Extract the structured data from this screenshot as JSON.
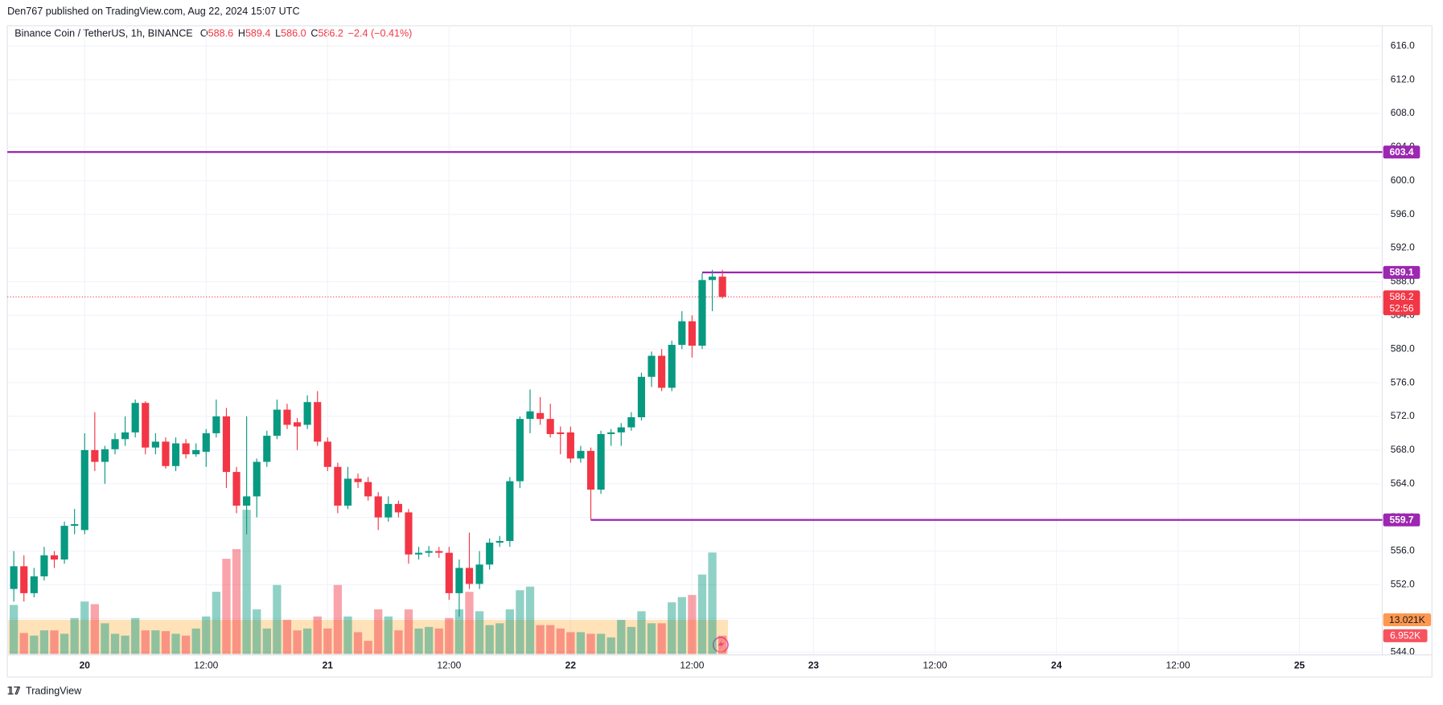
{
  "header": {
    "published": "Den767 published on TradingView.com, Aug 22, 2024 15:07 UTC",
    "brand": "TradingView"
  },
  "chart_data": {
    "type": "candlestick",
    "title": "Binance Coin / TetherUS, 1h, BINANCE",
    "legend": {
      "o_label": "O",
      "o": "588.6",
      "h_label": "H",
      "h": "589.4",
      "l_label": "L",
      "l": "586.0",
      "c_label": "C",
      "c": "586.2",
      "change": "−2.4 (−0.41%)"
    },
    "up_color": "#089981",
    "down_color": "#f23645",
    "open": [
      551.5,
      554.2,
      551,
      553,
      555.5,
      555,
      559,
      558.5,
      568,
      566.6,
      568.1,
      569.3,
      570.1,
      573.6,
      568.3,
      569,
      566.1,
      568.8,
      567.5,
      567.8,
      570,
      572,
      565.4,
      561.4,
      562.5,
      566.6,
      569.7,
      572.8,
      571.3,
      571,
      573.7,
      569,
      566,
      561.4,
      564.6,
      564.2,
      562.5,
      560,
      561.6,
      560.6,
      555.6,
      555.8,
      556,
      555.8,
      551,
      554,
      552.1,
      554.4,
      557,
      557.2,
      564.3,
      571.7,
      572.4,
      571.7,
      570.1,
      570.1,
      567,
      567.9,
      563.3,
      569.9,
      570.1,
      570.7,
      571.9,
      576.7,
      579.2,
      575.4,
      580.5,
      583.3,
      580.4,
      588.2,
      588.6
    ],
    "high": [
      556,
      555.5,
      554,
      556.5,
      556,
      559.5,
      561,
      570,
      572.5,
      568.5,
      570,
      572,
      574,
      573.8,
      570,
      569.5,
      569.5,
      569.3,
      568.8,
      570.5,
      574,
      573,
      566,
      572,
      567,
      570.3,
      574,
      573.5,
      571.8,
      574.5,
      575,
      569.5,
      566.5,
      566,
      565.2,
      564.8,
      563,
      562.5,
      562,
      561,
      556.5,
      556.6,
      556.5,
      556.5,
      555,
      558.2,
      556,
      557.5,
      557.8,
      564.8,
      572,
      575.2,
      574.3,
      573.5,
      570.8,
      570.8,
      568.5,
      568.3,
      570.3,
      570.5,
      571.2,
      572.5,
      577.2,
      579.7,
      580,
      581,
      584.5,
      584,
      589,
      589.4,
      589.4
    ],
    "low": [
      550,
      550,
      550.5,
      552.5,
      554,
      554.5,
      558,
      558,
      565.5,
      564,
      567.5,
      568.5,
      569.5,
      567.5,
      567.5,
      565.8,
      565.5,
      567,
      567.2,
      566,
      569.5,
      563.5,
      560.5,
      558,
      560,
      566,
      569.3,
      570.5,
      568,
      570.5,
      568.5,
      565.5,
      560.5,
      561,
      563.5,
      562,
      558.5,
      559.5,
      560,
      554.5,
      555,
      555.3,
      555.2,
      550.2,
      548.2,
      551.5,
      551.5,
      553.8,
      556.5,
      556.5,
      563.5,
      570,
      571,
      569.5,
      567.5,
      566.5,
      566.5,
      559.7,
      562.8,
      568.5,
      568.5,
      570.3,
      571.5,
      575.5,
      575,
      575,
      580,
      579,
      580,
      584.5,
      586
    ],
    "close": [
      554.2,
      551,
      553,
      555.5,
      555,
      559,
      559.2,
      568,
      566.6,
      568.1,
      569.3,
      570.1,
      573.6,
      568.3,
      569,
      566.1,
      568.8,
      567.5,
      568,
      570,
      572,
      565.4,
      561.4,
      562.5,
      566.6,
      569.7,
      572.8,
      571,
      570.8,
      573.7,
      569,
      566,
      561.4,
      564.6,
      564.2,
      562.5,
      560,
      561.6,
      560.6,
      555.6,
      555.8,
      556,
      555.8,
      551,
      554,
      552.1,
      554.4,
      557,
      557.2,
      564.3,
      571.7,
      572.6,
      571.7,
      569.9,
      569.9,
      567,
      567.9,
      563.3,
      569.9,
      570.1,
      570.7,
      571.9,
      576.7,
      579.2,
      575.4,
      580.5,
      583.3,
      580.4,
      588.2,
      588.6,
      586.2
    ],
    "volume": [
      18.7,
      8,
      7,
      9,
      9,
      7.7,
      13.7,
      20,
      19,
      11.7,
      7.7,
      7,
      13.7,
      9,
      9,
      8.7,
      7.7,
      7,
      9.7,
      14.3,
      23.7,
      36.3,
      40,
      55,
      17,
      9.7,
      26.3,
      13,
      9,
      9.7,
      14.3,
      9.7,
      26.3,
      14.3,
      8.3,
      5,
      17,
      14.3,
      9,
      17,
      9.7,
      10.3,
      9.7,
      13.7,
      17,
      23.7,
      16.3,
      11,
      11.7,
      17,
      24.3,
      25.7,
      11,
      11,
      9.7,
      8.3,
      8.3,
      7.7,
      7.7,
      6.3,
      13,
      10.3,
      16.3,
      11.7,
      11.7,
      19.7,
      21.7,
      22.5,
      30.3,
      38.7,
      6.952
    ],
    "volume_ylim": [
      0,
      60
    ],
    "volume_ma": {
      "value": 13.021,
      "label": "13.021K"
    },
    "volume_last": {
      "value": 6.952,
      "label": "6.952K"
    },
    "ylim": [
      544,
      616
    ],
    "yticks": [
      {
        "value": 544,
        "label": "544.0"
      },
      {
        "value": 548,
        "label": "548.0"
      },
      {
        "value": 552,
        "label": "552.0"
      },
      {
        "value": 556,
        "label": "556.0"
      },
      {
        "value": 560,
        "label": "560.0"
      },
      {
        "value": 564,
        "label": "564.0"
      },
      {
        "value": 568,
        "label": "568.0"
      },
      {
        "value": 572,
        "label": "572.0"
      },
      {
        "value": 576,
        "label": "576.0"
      },
      {
        "value": 580,
        "label": "580.0"
      },
      {
        "value": 584,
        "label": "584.0"
      },
      {
        "value": 588,
        "label": "588.0"
      },
      {
        "value": 592,
        "label": "592.0"
      },
      {
        "value": 596,
        "label": "596.0"
      },
      {
        "value": 600,
        "label": "600.0"
      },
      {
        "value": 604,
        "label": "604.0"
      },
      {
        "value": 608,
        "label": "608.0"
      },
      {
        "value": 612,
        "label": "612.0"
      },
      {
        "value": 616,
        "label": "616.0"
      }
    ],
    "xticks": [
      "20",
      "12:00",
      "21",
      "12:00",
      "22",
      "12:00",
      "23",
      "12:00",
      "24",
      "12:00",
      "25"
    ],
    "levels": [
      {
        "value": 603.4,
        "label": "603.4",
        "color": "#9c27b0"
      },
      {
        "value": 589.1,
        "label": "589.1",
        "color": "#9c27b0"
      },
      {
        "value": 559.7,
        "label": "559.7",
        "color": "#9c27b0"
      }
    ],
    "last_price": {
      "value": 586.2,
      "label": "586.2",
      "countdown": "52:56",
      "color": "#f23645"
    },
    "grid": true
  }
}
